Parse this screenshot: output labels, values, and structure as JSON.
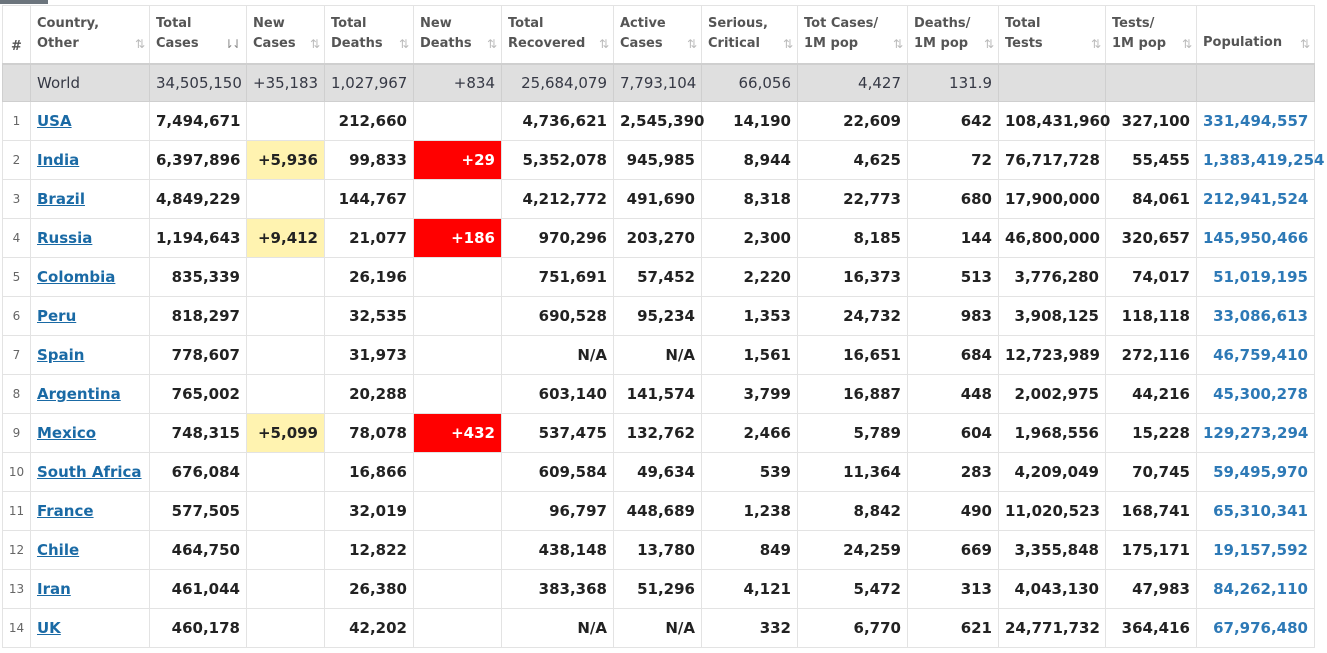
{
  "headers": [
    {
      "l1": "#",
      "l2": ""
    },
    {
      "l1": "Country,",
      "l2": "Other"
    },
    {
      "l1": "Total",
      "l2": "Cases"
    },
    {
      "l1": "New",
      "l2": "Cases"
    },
    {
      "l1": "Total",
      "l2": "Deaths"
    },
    {
      "l1": "New",
      "l2": "Deaths"
    },
    {
      "l1": "Total",
      "l2": "Recovered"
    },
    {
      "l1": "Active",
      "l2": "Cases"
    },
    {
      "l1": "Serious,",
      "l2": "Critical"
    },
    {
      "l1": "Tot Cases/",
      "l2": "1M pop"
    },
    {
      "l1": "Deaths/",
      "l2": "1M pop"
    },
    {
      "l1": "Total",
      "l2": "Tests"
    },
    {
      "l1": "Tests/",
      "l2": "1M pop"
    },
    {
      "l1": "Population",
      "l2": ""
    }
  ],
  "sort_icon": "⇅",
  "sort_active_icon": "⇂⇃",
  "world": {
    "name": "World",
    "total_cases": "34,505,150",
    "new_cases": "+35,183",
    "total_deaths": "1,027,967",
    "new_deaths": "+834",
    "total_recovered": "25,684,079",
    "active_cases": "7,793,104",
    "serious": "66,056",
    "cases_per_m": "4,427",
    "deaths_per_m": "131.9",
    "total_tests": "",
    "tests_per_m": "",
    "population": ""
  },
  "rows": [
    {
      "n": "1",
      "name": "USA",
      "total_cases": "7,494,671",
      "new_cases": "",
      "total_deaths": "212,660",
      "new_deaths": "",
      "total_recovered": "4,736,621",
      "active_cases": "2,545,390",
      "serious": "14,190",
      "cases_per_m": "22,609",
      "deaths_per_m": "642",
      "total_tests": "108,431,960",
      "tests_per_m": "327,100",
      "population": "331,494,557"
    },
    {
      "n": "2",
      "name": "India",
      "total_cases": "6,397,896",
      "new_cases": "+5,936",
      "total_deaths": "99,833",
      "new_deaths": "+29",
      "total_recovered": "5,352,078",
      "active_cases": "945,985",
      "serious": "8,944",
      "cases_per_m": "4,625",
      "deaths_per_m": "72",
      "total_tests": "76,717,728",
      "tests_per_m": "55,455",
      "population": "1,383,419,254"
    },
    {
      "n": "3",
      "name": "Brazil",
      "total_cases": "4,849,229",
      "new_cases": "",
      "total_deaths": "144,767",
      "new_deaths": "",
      "total_recovered": "4,212,772",
      "active_cases": "491,690",
      "serious": "8,318",
      "cases_per_m": "22,773",
      "deaths_per_m": "680",
      "total_tests": "17,900,000",
      "tests_per_m": "84,061",
      "population": "212,941,524"
    },
    {
      "n": "4",
      "name": "Russia",
      "total_cases": "1,194,643",
      "new_cases": "+9,412",
      "total_deaths": "21,077",
      "new_deaths": "+186",
      "total_recovered": "970,296",
      "active_cases": "203,270",
      "serious": "2,300",
      "cases_per_m": "8,185",
      "deaths_per_m": "144",
      "total_tests": "46,800,000",
      "tests_per_m": "320,657",
      "population": "145,950,466"
    },
    {
      "n": "5",
      "name": "Colombia",
      "total_cases": "835,339",
      "new_cases": "",
      "total_deaths": "26,196",
      "new_deaths": "",
      "total_recovered": "751,691",
      "active_cases": "57,452",
      "serious": "2,220",
      "cases_per_m": "16,373",
      "deaths_per_m": "513",
      "total_tests": "3,776,280",
      "tests_per_m": "74,017",
      "population": "51,019,195"
    },
    {
      "n": "6",
      "name": "Peru",
      "total_cases": "818,297",
      "new_cases": "",
      "total_deaths": "32,535",
      "new_deaths": "",
      "total_recovered": "690,528",
      "active_cases": "95,234",
      "serious": "1,353",
      "cases_per_m": "24,732",
      "deaths_per_m": "983",
      "total_tests": "3,908,125",
      "tests_per_m": "118,118",
      "population": "33,086,613"
    },
    {
      "n": "7",
      "name": "Spain",
      "total_cases": "778,607",
      "new_cases": "",
      "total_deaths": "31,973",
      "new_deaths": "",
      "total_recovered": "N/A",
      "active_cases": "N/A",
      "serious": "1,561",
      "cases_per_m": "16,651",
      "deaths_per_m": "684",
      "total_tests": "12,723,989",
      "tests_per_m": "272,116",
      "population": "46,759,410"
    },
    {
      "n": "8",
      "name": "Argentina",
      "total_cases": "765,002",
      "new_cases": "",
      "total_deaths": "20,288",
      "new_deaths": "",
      "total_recovered": "603,140",
      "active_cases": "141,574",
      "serious": "3,799",
      "cases_per_m": "16,887",
      "deaths_per_m": "448",
      "total_tests": "2,002,975",
      "tests_per_m": "44,216",
      "population": "45,300,278"
    },
    {
      "n": "9",
      "name": "Mexico",
      "total_cases": "748,315",
      "new_cases": "+5,099",
      "total_deaths": "78,078",
      "new_deaths": "+432",
      "total_recovered": "537,475",
      "active_cases": "132,762",
      "serious": "2,466",
      "cases_per_m": "5,789",
      "deaths_per_m": "604",
      "total_tests": "1,968,556",
      "tests_per_m": "15,228",
      "population": "129,273,294"
    },
    {
      "n": "10",
      "name": "South Africa",
      "total_cases": "676,084",
      "new_cases": "",
      "total_deaths": "16,866",
      "new_deaths": "",
      "total_recovered": "609,584",
      "active_cases": "49,634",
      "serious": "539",
      "cases_per_m": "11,364",
      "deaths_per_m": "283",
      "total_tests": "4,209,049",
      "tests_per_m": "70,745",
      "population": "59,495,970"
    },
    {
      "n": "11",
      "name": "France",
      "total_cases": "577,505",
      "new_cases": "",
      "total_deaths": "32,019",
      "new_deaths": "",
      "total_recovered": "96,797",
      "active_cases": "448,689",
      "serious": "1,238",
      "cases_per_m": "8,842",
      "deaths_per_m": "490",
      "total_tests": "11,020,523",
      "tests_per_m": "168,741",
      "population": "65,310,341"
    },
    {
      "n": "12",
      "name": "Chile",
      "total_cases": "464,750",
      "new_cases": "",
      "total_deaths": "12,822",
      "new_deaths": "",
      "total_recovered": "438,148",
      "active_cases": "13,780",
      "serious": "849",
      "cases_per_m": "24,259",
      "deaths_per_m": "669",
      "total_tests": "3,355,848",
      "tests_per_m": "175,171",
      "population": "19,157,592"
    },
    {
      "n": "13",
      "name": "Iran",
      "total_cases": "461,044",
      "new_cases": "",
      "total_deaths": "26,380",
      "new_deaths": "",
      "total_recovered": "383,368",
      "active_cases": "51,296",
      "serious": "4,121",
      "cases_per_m": "5,472",
      "deaths_per_m": "313",
      "total_tests": "4,043,130",
      "tests_per_m": "47,983",
      "population": "84,262,110"
    },
    {
      "n": "14",
      "name": "UK",
      "total_cases": "460,178",
      "new_cases": "",
      "total_deaths": "42,202",
      "new_deaths": "",
      "total_recovered": "N/A",
      "active_cases": "N/A",
      "serious": "332",
      "cases_per_m": "6,770",
      "deaths_per_m": "621",
      "total_tests": "24,771,732",
      "tests_per_m": "364,416",
      "population": "67,976,480"
    }
  ],
  "colors": {
    "new_cases_highlight": "#fff3b0",
    "new_deaths_highlight": "#ff0000",
    "link": "#1a6aa5",
    "world_row": "#dfdfdf"
  }
}
